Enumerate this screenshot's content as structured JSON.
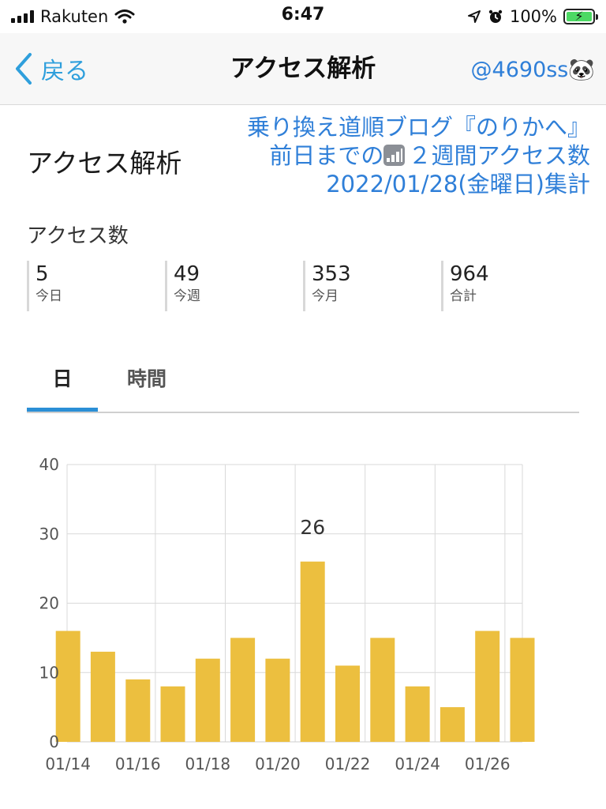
{
  "status_bar": {
    "carrier": "Rakuten",
    "time": "6:47",
    "battery_percent": "100%",
    "battery_level": 1.0
  },
  "nav": {
    "back_label": "戻る",
    "title": "アクセス解析",
    "account": "@4690ss🐼"
  },
  "page": {
    "heading": "アクセス解析"
  },
  "overlay": {
    "line1": "乗り換え道順ブログ『のりかへ』",
    "line2_prefix": "前日までの",
    "line2_suffix": "２週間アクセス数",
    "line3": "2022/01/28(金曜日)集計"
  },
  "access": {
    "section_label": "アクセス数",
    "stats": [
      {
        "value": "5",
        "label": "今日"
      },
      {
        "value": "49",
        "label": "今週"
      },
      {
        "value": "353",
        "label": "今月"
      },
      {
        "value": "964",
        "label": "合計"
      }
    ]
  },
  "tabs": [
    {
      "label": "日",
      "active": true
    },
    {
      "label": "時間",
      "active": false
    }
  ],
  "colors": {
    "accent": "#2b8fd6",
    "link": "#2f7fd8",
    "bar": "#ecbf3f",
    "grid": "#d9d9d9"
  },
  "chart_data": {
    "type": "bar",
    "categories": [
      "01/14",
      "01/15",
      "01/16",
      "01/17",
      "01/18",
      "01/19",
      "01/20",
      "01/21",
      "01/22",
      "01/23",
      "01/24",
      "01/25",
      "01/26",
      "01/27"
    ],
    "values": [
      16,
      13,
      9,
      8,
      12,
      15,
      12,
      26,
      11,
      15,
      8,
      5,
      16,
      15
    ],
    "x_tick_labels": [
      "01/14",
      "01/16",
      "01/18",
      "01/20",
      "01/22",
      "01/24",
      "01/26"
    ],
    "y_ticks": [
      "0",
      "10",
      "20",
      "30",
      "40"
    ],
    "ylim": [
      0,
      40
    ],
    "data_labels": [
      {
        "category": "01/21",
        "text": "26"
      }
    ],
    "grid": true,
    "title": "",
    "xlabel": "",
    "ylabel": ""
  }
}
